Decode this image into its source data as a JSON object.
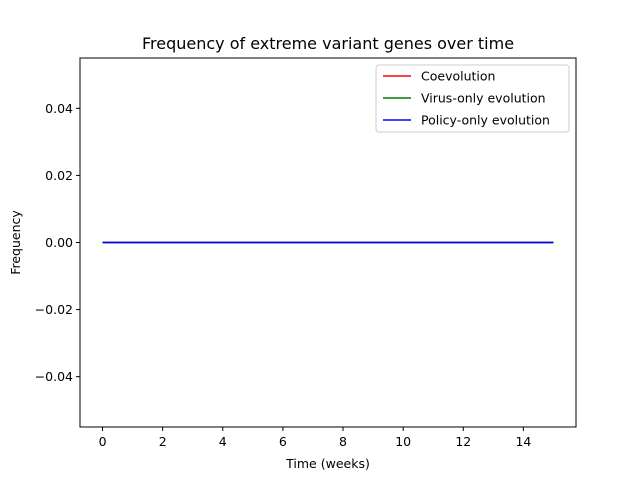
{
  "chart_data": {
    "type": "line",
    "title": "Frequency of extreme variant genes over time",
    "xlabel": "Time (weeks)",
    "ylabel": "Frequency",
    "xlim": [
      -0.75,
      15.75
    ],
    "ylim": [
      -0.055,
      0.055
    ],
    "x_ticks": [
      0,
      2,
      4,
      6,
      8,
      10,
      12,
      14
    ],
    "y_ticks": [
      -0.04,
      -0.02,
      0.0,
      0.02,
      0.04
    ],
    "y_tick_labels": [
      "−0.04",
      "−0.02",
      "0.00",
      "0.02",
      "0.04"
    ],
    "grid": false,
    "legend_position": "top-right",
    "x": [
      0,
      15
    ],
    "series": [
      {
        "name": "Coevolution",
        "color": "#ff0000",
        "values": [
          0,
          0
        ]
      },
      {
        "name": "Virus-only evolution",
        "color": "#008000",
        "values": [
          0,
          0
        ]
      },
      {
        "name": "Policy-only evolution",
        "color": "#0000ff",
        "values": [
          0,
          0
        ]
      }
    ]
  }
}
